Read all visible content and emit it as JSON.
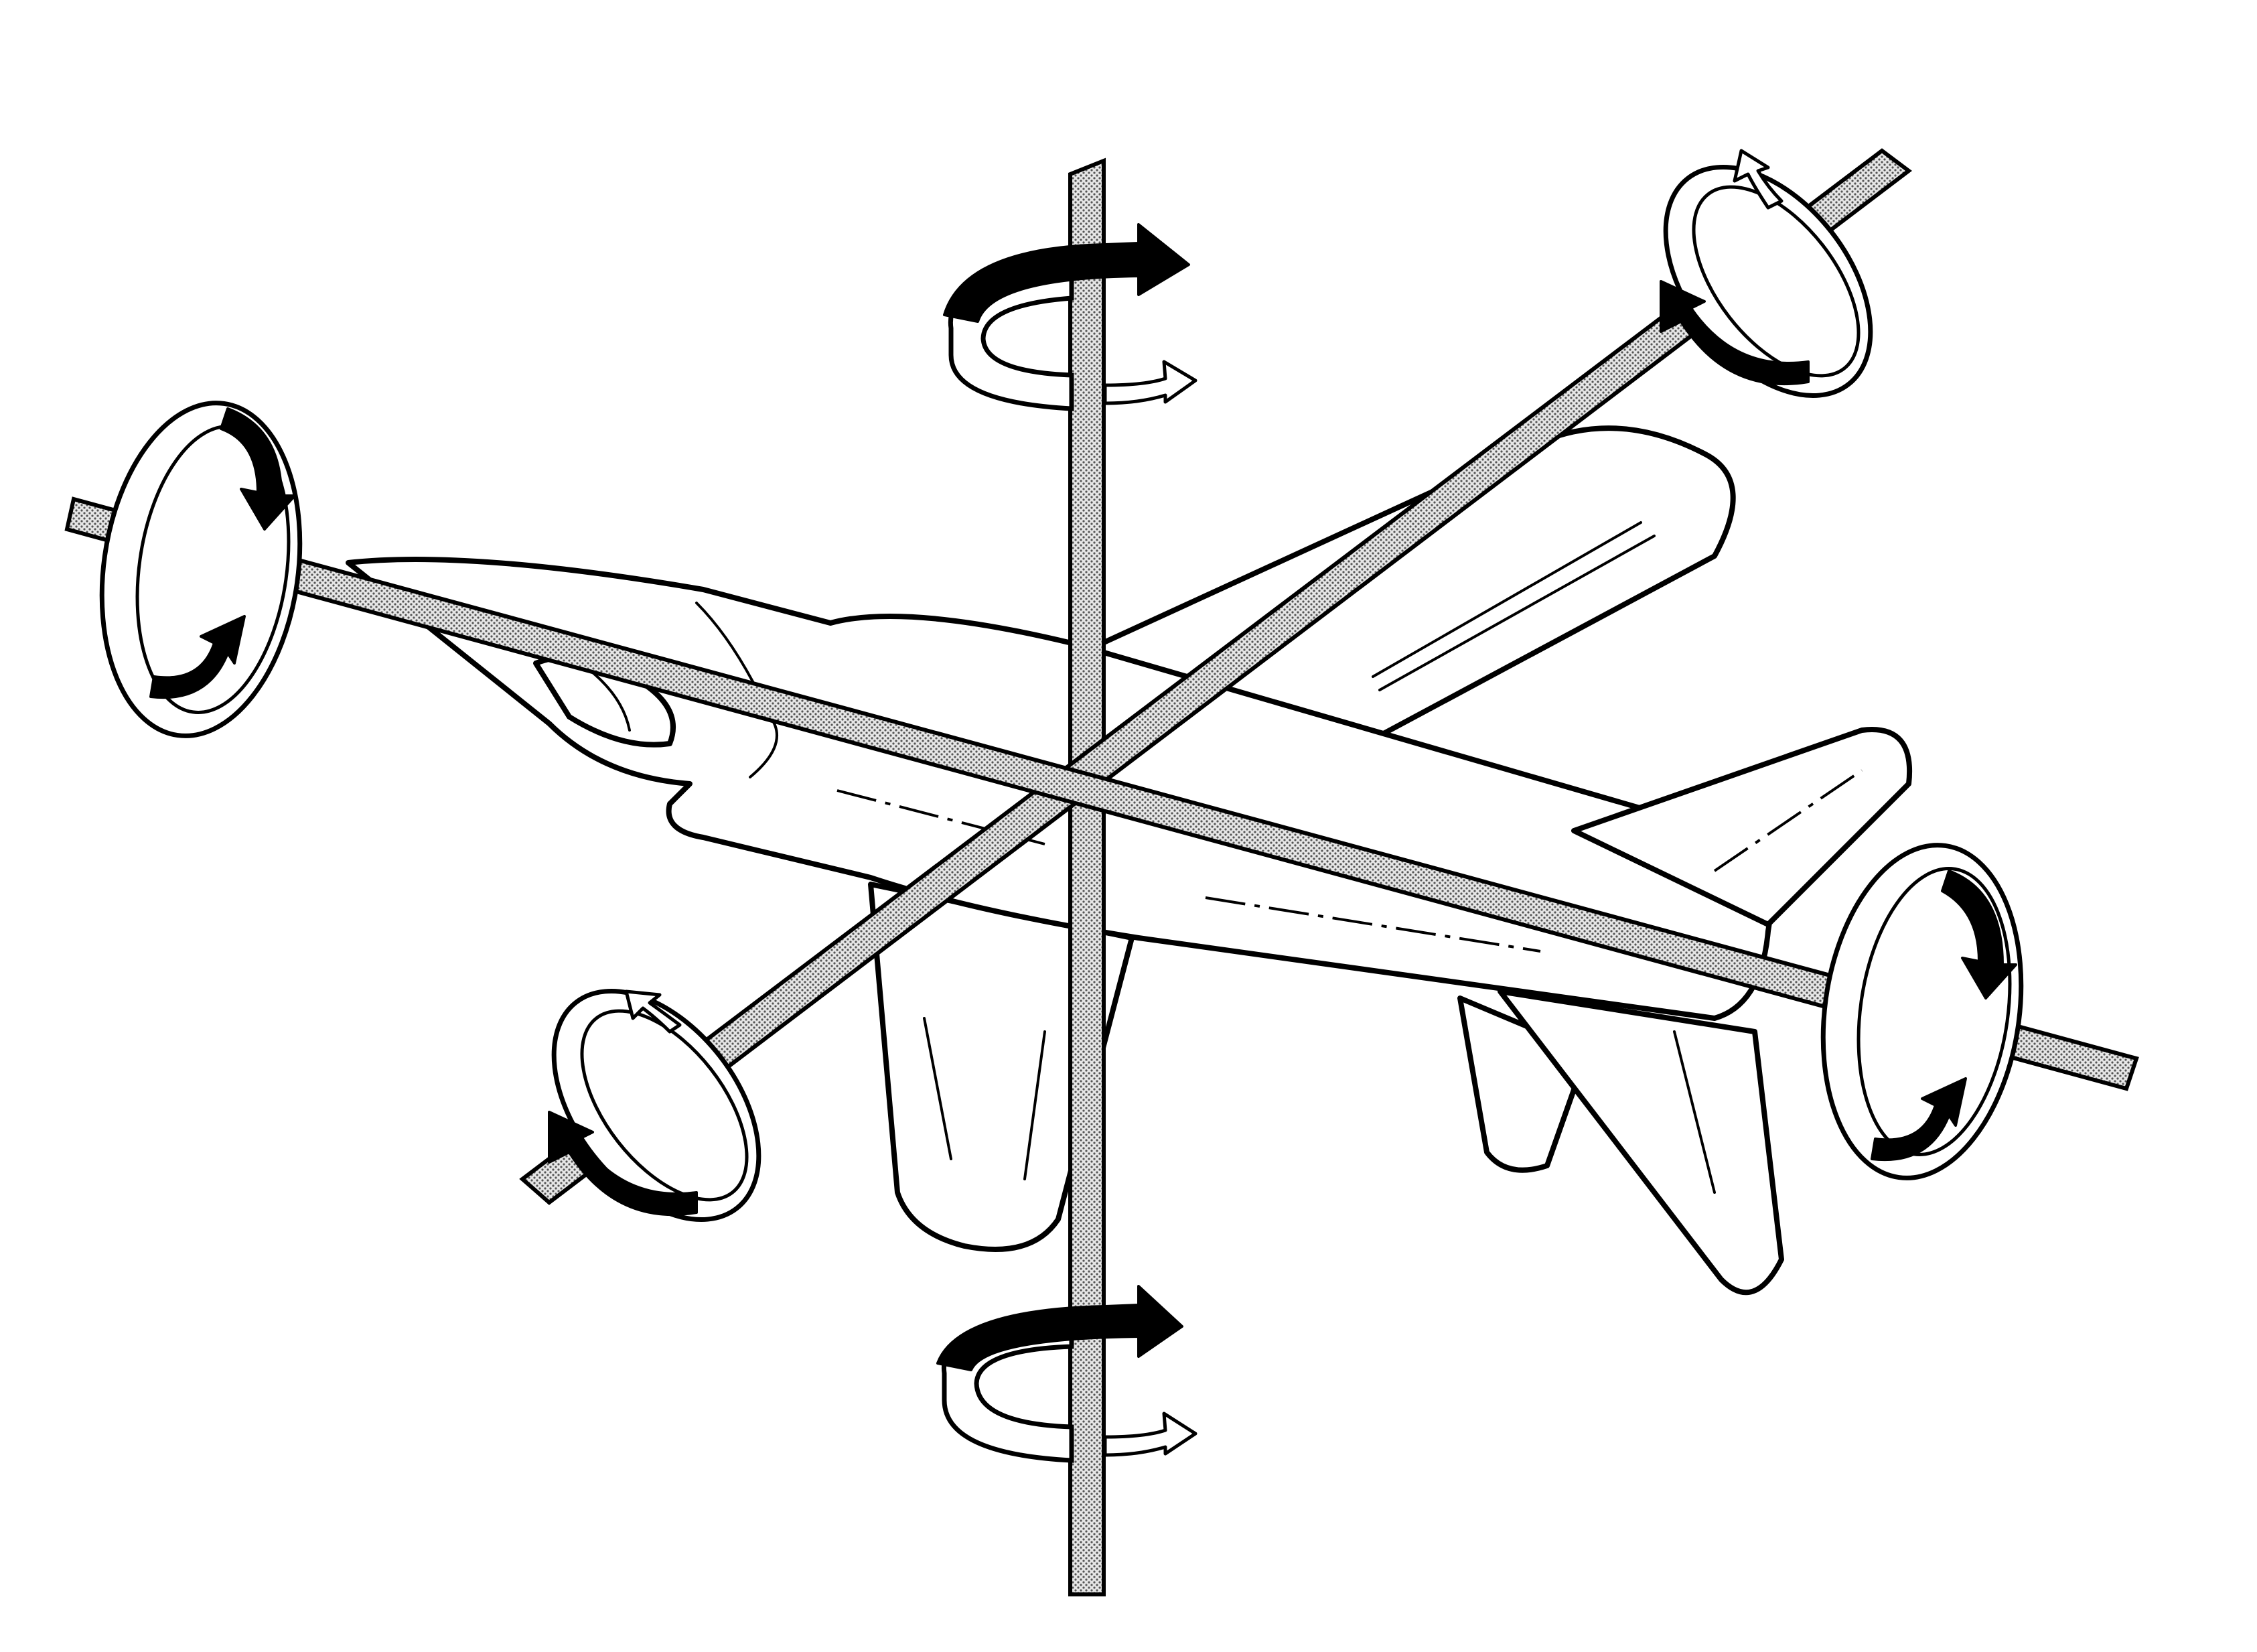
{
  "figure": {
    "subject": "aircraft",
    "axes": [
      {
        "key": "longitudinal"
      },
      {
        "key": "lateral"
      },
      {
        "key": "vertical"
      }
    ],
    "colors": {
      "ink": "#000000",
      "background": "#ffffff",
      "axis_stipple": "#9a9a9a"
    },
    "icons": [
      "solid-rotation-arrow",
      "open-rotation-arrow"
    ]
  }
}
